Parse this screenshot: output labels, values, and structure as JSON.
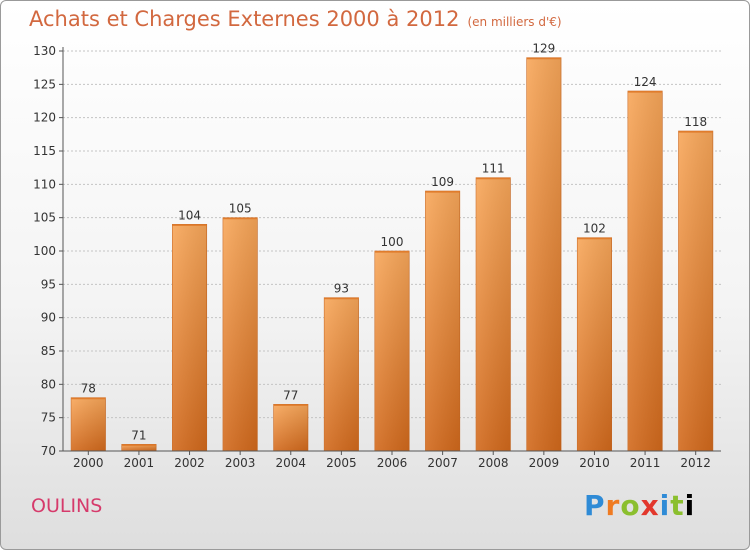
{
  "chart_data": {
    "type": "bar",
    "title": "Achats et Charges Externes 2000 à 2012",
    "subtitle": "(en milliers d'€)",
    "categories": [
      "2000",
      "2001",
      "2002",
      "2003",
      "2004",
      "2005",
      "2006",
      "2007",
      "2008",
      "2009",
      "2010",
      "2011",
      "2012"
    ],
    "values": [
      78,
      71,
      104,
      105,
      77,
      93,
      100,
      109,
      111,
      129,
      102,
      124,
      118
    ],
    "ylim": [
      70,
      130
    ],
    "yticks": [
      70,
      75,
      80,
      85,
      90,
      95,
      100,
      105,
      110,
      115,
      120,
      125,
      130
    ],
    "grid": true,
    "colors": {
      "bar_light": "#f8a75a",
      "bar_dark": "#d2691c",
      "title": "#d2683f"
    }
  },
  "location": "OULINS",
  "logo": {
    "letters": [
      "P",
      "r",
      "o",
      "x",
      "i",
      "t",
      "i"
    ]
  }
}
